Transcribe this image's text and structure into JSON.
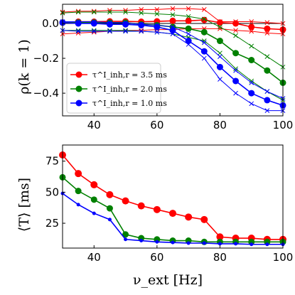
{
  "chart_data": [
    {
      "type": "line",
      "ylabel": "ρ(k = 1)",
      "xlim": [
        30,
        100
      ],
      "ylim": [
        -0.53,
        0.11
      ],
      "xticks": [
        40,
        60,
        80,
        100
      ],
      "xtick_labels": [
        "40",
        "60",
        "80",
        "100"
      ],
      "yticks": [
        0.0,
        -0.2,
        -0.4
      ],
      "ytick_labels": [
        "0.0",
        "−0.2",
        "−0.4"
      ],
      "zero_line": 0,
      "legend_position": "lower-left",
      "legend": [
        {
          "label": "τ^I_inh,r = 3.5 ms",
          "color": "#ff0000"
        },
        {
          "label": "τ^I_inh,r = 2.0 ms",
          "color": "#008000"
        },
        {
          "label": "τ^I_inh,r = 1.0 ms",
          "color": "#0000ff"
        }
      ],
      "x": [
        30,
        35,
        40,
        45,
        50,
        55,
        60,
        65,
        70,
        75,
        80,
        85,
        90,
        95,
        100
      ],
      "series": [
        {
          "name": "τ^I_inh,r = 3.5 ms",
          "color": "#ff0000",
          "marker": "circle",
          "values": [
            0.005,
            0.01,
            0.01,
            0.012,
            0.012,
            0.01,
            0.012,
            0.015,
            0.015,
            0.02,
            0.005,
            0.0,
            -0.02,
            -0.03,
            -0.035
          ]
        },
        {
          "name": "τ^I_inh,r = 3.5 ms (upper bound)",
          "color": "#ff0000",
          "marker": "x",
          "values": [
            0.065,
            0.07,
            0.07,
            0.075,
            0.075,
            0.08,
            0.08,
            0.085,
            0.085,
            0.08,
            0.01,
            0.01,
            0.01,
            0.005,
            0.0
          ]
        },
        {
          "name": "τ^I_inh,r = 3.5 ms (lower bound)",
          "color": "#ff0000",
          "marker": "x",
          "values": [
            -0.06,
            -0.055,
            -0.05,
            -0.045,
            -0.04,
            -0.04,
            -0.035,
            -0.035,
            -0.03,
            -0.03,
            -0.03,
            -0.04,
            -0.045,
            -0.055,
            -0.06
          ]
        },
        {
          "name": "τ^I_inh,r = 2.0 ms",
          "color": "#008000",
          "marker": "circle",
          "values": [
            0.005,
            0.005,
            0.005,
            0.005,
            0.005,
            -0.005,
            -0.01,
            -0.02,
            -0.03,
            -0.05,
            -0.1,
            -0.17,
            -0.21,
            -0.27,
            -0.34
          ]
        },
        {
          "name": "τ^I_inh,r = 2.0 ms (upper bound)",
          "color": "#008000",
          "marker": "x",
          "values": [
            0.06,
            0.065,
            0.065,
            0.065,
            0.065,
            0.06,
            0.055,
            0.05,
            0.04,
            0.025,
            -0.02,
            -0.07,
            -0.13,
            -0.19,
            -0.25
          ]
        },
        {
          "name": "τ^I_inh,r = 2.0 ms (lower bound)",
          "color": "#008000",
          "marker": "x",
          "values": [
            -0.04,
            -0.04,
            -0.04,
            -0.04,
            -0.04,
            -0.045,
            -0.05,
            -0.06,
            -0.08,
            -0.1,
            -0.17,
            -0.26,
            -0.33,
            -0.39,
            -0.44
          ]
        },
        {
          "name": "τ^I_inh,r = 1.0 ms",
          "color": "#0000ff",
          "marker": "circle",
          "values": [
            0.005,
            0.0,
            0.0,
            -0.005,
            -0.005,
            -0.01,
            -0.02,
            -0.04,
            -0.1,
            -0.16,
            -0.25,
            -0.33,
            -0.4,
            -0.44,
            -0.47
          ]
        },
        {
          "name": "τ^I_inh,r = 1.0 ms (upper bound)",
          "color": "#0000ff",
          "marker": "x",
          "values": [
            0.01,
            0.01,
            0.01,
            0.005,
            0.005,
            -0.005,
            -0.01,
            -0.02,
            -0.06,
            -0.11,
            -0.19,
            -0.27,
            -0.34,
            -0.39,
            -0.43
          ]
        },
        {
          "name": "τ^I_inh,r = 1.0 ms (lower bound)",
          "color": "#0000ff",
          "marker": "x",
          "values": [
            -0.04,
            -0.045,
            -0.045,
            -0.045,
            -0.045,
            -0.045,
            -0.05,
            -0.06,
            -0.12,
            -0.2,
            -0.32,
            -0.4,
            -0.46,
            -0.5,
            -0.5
          ]
        }
      ]
    },
    {
      "type": "line",
      "xlabel": "ν_ext [Hz]",
      "ylabel": "⟨T⟩ [ms]",
      "xlim": [
        30,
        100
      ],
      "ylim": [
        5,
        88
      ],
      "xticks": [
        40,
        60,
        80,
        100
      ],
      "xtick_labels": [
        "40",
        "60",
        "80",
        "100"
      ],
      "yticks": [
        25,
        50,
        75
      ],
      "ytick_labels": [
        "25",
        "50",
        "75"
      ],
      "x": [
        30,
        35,
        40,
        45,
        50,
        55,
        60,
        65,
        70,
        75,
        80,
        85,
        90,
        95,
        100
      ],
      "series": [
        {
          "name": "τ^I_inh,r = 3.5 ms",
          "color": "#ff0000",
          "marker": "circle",
          "markersize": 5,
          "values": [
            80,
            65,
            56,
            48,
            43,
            39,
            36,
            33,
            30,
            28,
            14,
            13,
            13,
            12,
            12
          ]
        },
        {
          "name": "τ^I_inh,r = 2.0 ms",
          "color": "#008000",
          "marker": "circle",
          "markersize": 4.5,
          "values": [
            62,
            51,
            44,
            37,
            16,
            13,
            12,
            11,
            11,
            10,
            10,
            10,
            10,
            10,
            10
          ]
        },
        {
          "name": "τ^I_inh,r = 1.0 ms",
          "color": "#0000ff",
          "marker": "circle",
          "markersize": 2.5,
          "values": [
            49,
            40,
            33,
            28,
            12,
            11,
            10,
            9.5,
            9,
            9,
            8.5,
            8.5,
            8,
            8,
            8
          ]
        }
      ]
    }
  ]
}
